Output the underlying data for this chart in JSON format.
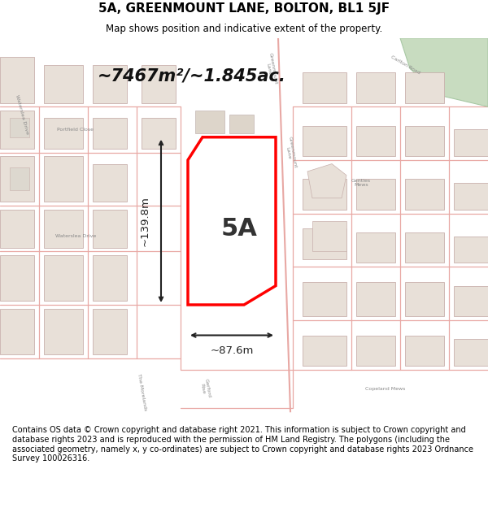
{
  "title": "5A, GREENMOUNT LANE, BOLTON, BL1 5JF",
  "subtitle": "Map shows position and indicative extent of the property.",
  "footer": "Contains OS data © Crown copyright and database right 2021. This information is subject to Crown copyright and database rights 2023 and is reproduced with the permission of HM Land Registry. The polygons (including the associated geometry, namely x, y co-ordinates) are subject to Crown copyright and database rights 2023 Ordnance Survey 100026316.",
  "area_label": "~7467m²/~1.845ac.",
  "property_label": "5A",
  "dim_vertical": "~139.8m",
  "dim_horizontal": "~87.6m",
  "bg_color": "#f2ede8",
  "property_fill": "#ffffff",
  "property_edge": "#ff0000",
  "dim_color": "#222222",
  "title_color": "#000000",
  "footer_color": "#000000",
  "road_color": "#e8a8a4",
  "block_face": "#e8e0d8",
  "block_edge": "#c8b0ac",
  "green_color": "#c8dcc0"
}
